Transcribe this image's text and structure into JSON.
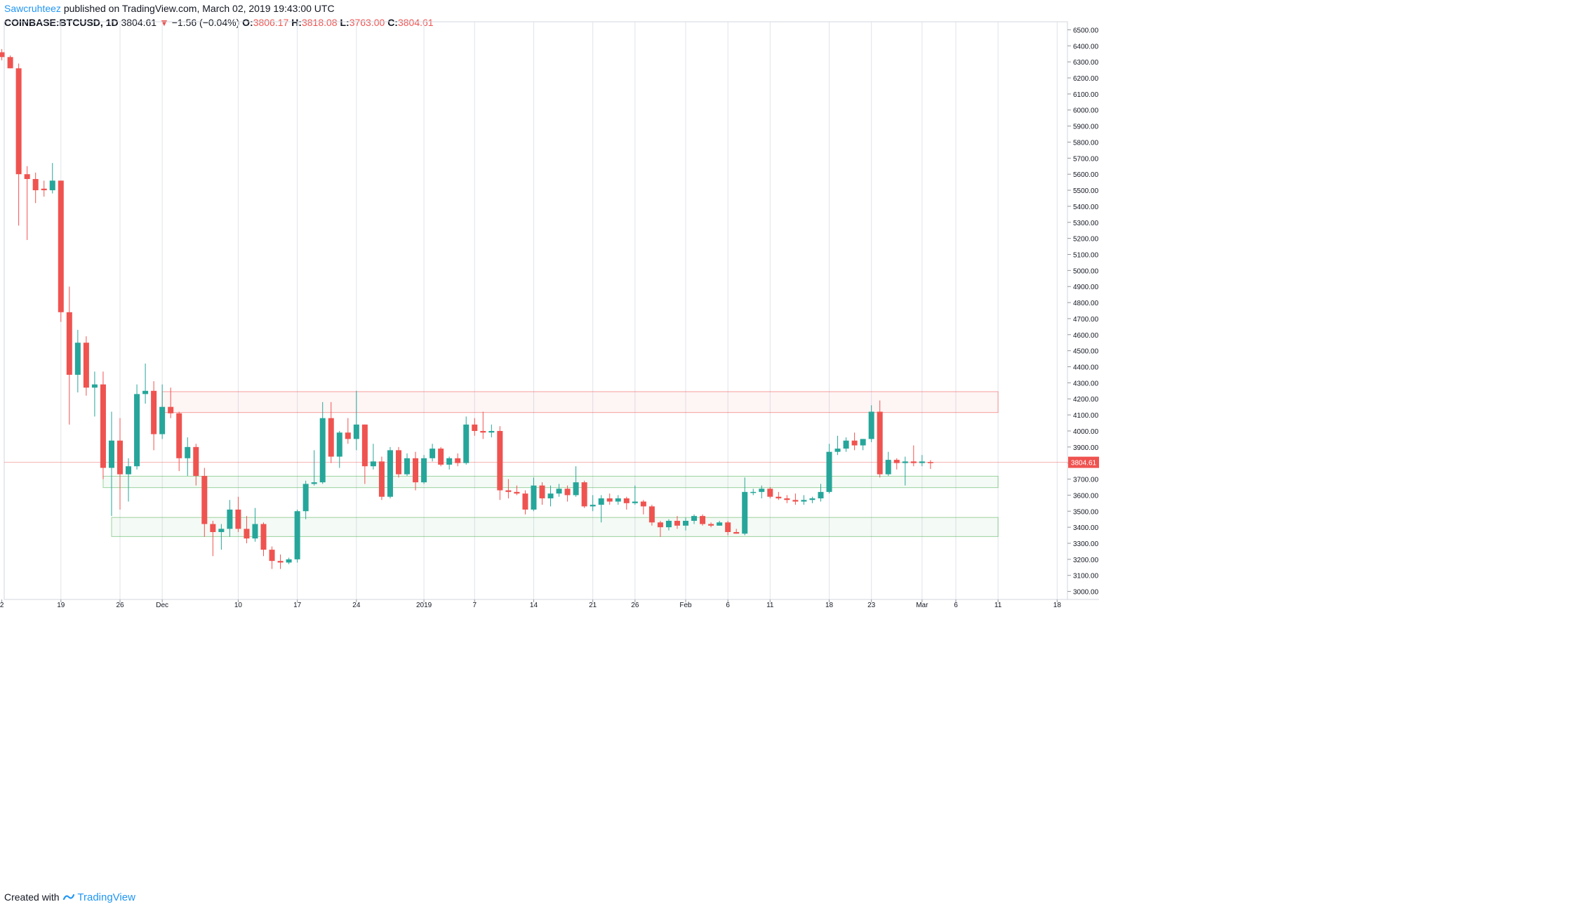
{
  "header": {
    "author": "Sawcruhteez",
    "published": "published on TradingView.com, March 02, 2019 19:43:00 UTC",
    "symbol": "COINBASE:BTCUSD, 1D",
    "last": "3804.61",
    "change_arrow": "▼",
    "change": "−1.56 (−0.04%)",
    "o_label": "O:",
    "o_value": "3806.17",
    "h_label": "H:",
    "h_value": "3818.08",
    "l_label": "L:",
    "l_value": "3763.00",
    "c_label": "C:",
    "c_value": "3804.61"
  },
  "footer": {
    "created_with": "Created with",
    "brand": "TradingView"
  },
  "colors": {
    "up": "#26a69a",
    "down": "#ef5350",
    "resistance_zone": "#ef5350",
    "support_zone": "#4caf50",
    "grid": "#e0e3eb"
  },
  "chart_data": {
    "type": "candlestick",
    "interval": "1D",
    "ylim": [
      2950,
      6550
    ],
    "y_ticks": [
      "6500.00",
      "6400.00",
      "6300.00",
      "6200.00",
      "6100.00",
      "6000.00",
      "5900.00",
      "5800.00",
      "5700.00",
      "5600.00",
      "5500.00",
      "5400.00",
      "5300.00",
      "5200.00",
      "5100.00",
      "5000.00",
      "4900.00",
      "4800.00",
      "4700.00",
      "4600.00",
      "4500.00",
      "4400.00",
      "4300.00",
      "4200.00",
      "4100.00",
      "4000.00",
      "3900.00",
      "3800.00",
      "3700.00",
      "3600.00",
      "3500.00",
      "3400.00",
      "3300.00",
      "3200.00",
      "3100.00",
      "3000.00"
    ],
    "x_ticks": [
      {
        "label": "2",
        "day": -14
      },
      {
        "label": "19",
        "day": -7
      },
      {
        "label": "26",
        "day": 0
      },
      {
        "label": "Dec",
        "day": 5
      },
      {
        "label": "10",
        "day": 14
      },
      {
        "label": "17",
        "day": 21
      },
      {
        "label": "24",
        "day": 28
      },
      {
        "label": "2019",
        "day": 36
      },
      {
        "label": "7",
        "day": 42
      },
      {
        "label": "14",
        "day": 49
      },
      {
        "label": "21",
        "day": 56
      },
      {
        "label": "26",
        "day": 61
      },
      {
        "label": "Feb",
        "day": 67
      },
      {
        "label": "6",
        "day": 72
      },
      {
        "label": "11",
        "day": 77
      },
      {
        "label": "18",
        "day": 84
      },
      {
        "label": "23",
        "day": 89
      },
      {
        "label": "Mar",
        "day": 95
      },
      {
        "label": "6",
        "day": 99
      },
      {
        "label": "11",
        "day": 104
      },
      {
        "label": "18",
        "day": 111
      }
    ],
    "last_price": 3804.61,
    "last_price_label": "3804.61",
    "zones": [
      {
        "kind": "resistance",
        "from_day": 6,
        "to_day": 104,
        "low": 4115,
        "high": 4245
      },
      {
        "kind": "support",
        "from_day": -1,
        "to_day": 104,
        "low": 3647,
        "high": 3718
      },
      {
        "kind": "support",
        "from_day": 0,
        "to_day": 104,
        "low": 3342,
        "high": 3461
      }
    ],
    "candles": [
      {
        "day": -14,
        "o": 6360,
        "h": 6380,
        "l": 6310,
        "c": 6330
      },
      {
        "day": -13,
        "o": 6330,
        "h": 6340,
        "l": 6260,
        "c": 6260
      },
      {
        "day": -12,
        "o": 6260,
        "h": 6290,
        "l": 5280,
        "c": 5600
      },
      {
        "day": -11,
        "o": 5600,
        "h": 5650,
        "l": 5190,
        "c": 5570
      },
      {
        "day": -10,
        "o": 5570,
        "h": 5610,
        "l": 5420,
        "c": 5500
      },
      {
        "day": -9,
        "o": 5510,
        "h": 5560,
        "l": 5460,
        "c": 5500
      },
      {
        "day": -8,
        "o": 5500,
        "h": 5670,
        "l": 5480,
        "c": 5560
      },
      {
        "day": -7,
        "o": 5560,
        "h": 5560,
        "l": 4680,
        "c": 4740
      },
      {
        "day": -6,
        "o": 4740,
        "h": 4900,
        "l": 4040,
        "c": 4350
      },
      {
        "day": -5,
        "o": 4350,
        "h": 4630,
        "l": 4240,
        "c": 4550
      },
      {
        "day": -4,
        "o": 4550,
        "h": 4590,
        "l": 4220,
        "c": 4270
      },
      {
        "day": -3,
        "o": 4270,
        "h": 4370,
        "l": 4090,
        "c": 4290
      },
      {
        "day": -2,
        "o": 4290,
        "h": 4370,
        "l": 3700,
        "c": 3770
      },
      {
        "day": -1,
        "o": 3770,
        "h": 4120,
        "l": 3470,
        "c": 3940
      },
      {
        "day": 0,
        "o": 3940,
        "h": 4080,
        "l": 3510,
        "c": 3730
      },
      {
        "day": 1,
        "o": 3730,
        "h": 3830,
        "l": 3560,
        "c": 3780
      },
      {
        "day": 2,
        "o": 3780,
        "h": 4290,
        "l": 3760,
        "c": 4230
      },
      {
        "day": 3,
        "o": 4230,
        "h": 4420,
        "l": 4170,
        "c": 4250
      },
      {
        "day": 4,
        "o": 4250,
        "h": 4310,
        "l": 3880,
        "c": 3980
      },
      {
        "day": 5,
        "o": 3980,
        "h": 4290,
        "l": 3950,
        "c": 4150
      },
      {
        "day": 6,
        "o": 4150,
        "h": 4270,
        "l": 4080,
        "c": 4110
      },
      {
        "day": 7,
        "o": 4110,
        "h": 4120,
        "l": 3750,
        "c": 3830
      },
      {
        "day": 8,
        "o": 3830,
        "h": 3960,
        "l": 3720,
        "c": 3900
      },
      {
        "day": 9,
        "o": 3900,
        "h": 3920,
        "l": 3660,
        "c": 3720
      },
      {
        "day": 10,
        "o": 3720,
        "h": 3770,
        "l": 3340,
        "c": 3420
      },
      {
        "day": 11,
        "o": 3420,
        "h": 3440,
        "l": 3220,
        "c": 3370
      },
      {
        "day": 12,
        "o": 3370,
        "h": 3420,
        "l": 3260,
        "c": 3390
      },
      {
        "day": 13,
        "o": 3390,
        "h": 3570,
        "l": 3340,
        "c": 3510
      },
      {
        "day": 14,
        "o": 3510,
        "h": 3590,
        "l": 3370,
        "c": 3390
      },
      {
        "day": 15,
        "o": 3390,
        "h": 3470,
        "l": 3300,
        "c": 3330
      },
      {
        "day": 16,
        "o": 3330,
        "h": 3520,
        "l": 3310,
        "c": 3420
      },
      {
        "day": 17,
        "o": 3420,
        "h": 3430,
        "l": 3220,
        "c": 3260
      },
      {
        "day": 18,
        "o": 3260,
        "h": 3280,
        "l": 3140,
        "c": 3190
      },
      {
        "day": 19,
        "o": 3190,
        "h": 3230,
        "l": 3140,
        "c": 3180
      },
      {
        "day": 20,
        "o": 3180,
        "h": 3210,
        "l": 3170,
        "c": 3200
      },
      {
        "day": 21,
        "o": 3200,
        "h": 3510,
        "l": 3180,
        "c": 3500
      },
      {
        "day": 22,
        "o": 3500,
        "h": 3690,
        "l": 3450,
        "c": 3670
      },
      {
        "day": 23,
        "o": 3670,
        "h": 3880,
        "l": 3660,
        "c": 3680
      },
      {
        "day": 24,
        "o": 3680,
        "h": 4180,
        "l": 3670,
        "c": 4080
      },
      {
        "day": 25,
        "o": 4080,
        "h": 4180,
        "l": 3800,
        "c": 3840
      },
      {
        "day": 26,
        "o": 3840,
        "h": 4000,
        "l": 3770,
        "c": 3990
      },
      {
        "day": 27,
        "o": 3990,
        "h": 4080,
        "l": 3920,
        "c": 3950
      },
      {
        "day": 28,
        "o": 3950,
        "h": 4250,
        "l": 3880,
        "c": 4040
      },
      {
        "day": 29,
        "o": 4040,
        "h": 4040,
        "l": 3670,
        "c": 3780
      },
      {
        "day": 30,
        "o": 3780,
        "h": 3920,
        "l": 3760,
        "c": 3810
      },
      {
        "day": 31,
        "o": 3810,
        "h": 3840,
        "l": 3570,
        "c": 3590
      },
      {
        "day": 32,
        "o": 3590,
        "h": 3900,
        "l": 3580,
        "c": 3880
      },
      {
        "day": 33,
        "o": 3880,
        "h": 3900,
        "l": 3710,
        "c": 3730
      },
      {
        "day": 34,
        "o": 3730,
        "h": 3860,
        "l": 3720,
        "c": 3830
      },
      {
        "day": 35,
        "o": 3830,
        "h": 3870,
        "l": 3630,
        "c": 3680
      },
      {
        "day": 36,
        "o": 3680,
        "h": 3850,
        "l": 3670,
        "c": 3830
      },
      {
        "day": 37,
        "o": 3830,
        "h": 3920,
        "l": 3810,
        "c": 3890
      },
      {
        "day": 38,
        "o": 3890,
        "h": 3900,
        "l": 3780,
        "c": 3790
      },
      {
        "day": 39,
        "o": 3790,
        "h": 3840,
        "l": 3760,
        "c": 3830
      },
      {
        "day": 40,
        "o": 3830,
        "h": 3860,
        "l": 3780,
        "c": 3800
      },
      {
        "day": 41,
        "o": 3800,
        "h": 4090,
        "l": 3790,
        "c": 4040
      },
      {
        "day": 42,
        "o": 4040,
        "h": 4080,
        "l": 3970,
        "c": 4000
      },
      {
        "day": 43,
        "o": 4000,
        "h": 4120,
        "l": 3950,
        "c": 3990
      },
      {
        "day": 44,
        "o": 3990,
        "h": 4040,
        "l": 3960,
        "c": 4000
      },
      {
        "day": 45,
        "o": 4000,
        "h": 4030,
        "l": 3570,
        "c": 3630
      },
      {
        "day": 46,
        "o": 3630,
        "h": 3700,
        "l": 3580,
        "c": 3620
      },
      {
        "day": 47,
        "o": 3620,
        "h": 3660,
        "l": 3600,
        "c": 3610
      },
      {
        "day": 48,
        "o": 3610,
        "h": 3630,
        "l": 3480,
        "c": 3510
      },
      {
        "day": 49,
        "o": 3510,
        "h": 3710,
        "l": 3500,
        "c": 3660
      },
      {
        "day": 50,
        "o": 3660,
        "h": 3680,
        "l": 3540,
        "c": 3580
      },
      {
        "day": 51,
        "o": 3580,
        "h": 3660,
        "l": 3530,
        "c": 3610
      },
      {
        "day": 52,
        "o": 3610,
        "h": 3670,
        "l": 3590,
        "c": 3640
      },
      {
        "day": 53,
        "o": 3640,
        "h": 3660,
        "l": 3560,
        "c": 3600
      },
      {
        "day": 54,
        "o": 3600,
        "h": 3780,
        "l": 3590,
        "c": 3680
      },
      {
        "day": 55,
        "o": 3680,
        "h": 3690,
        "l": 3520,
        "c": 3530
      },
      {
        "day": 56,
        "o": 3530,
        "h": 3600,
        "l": 3500,
        "c": 3540
      },
      {
        "day": 57,
        "o": 3540,
        "h": 3600,
        "l": 3430,
        "c": 3580
      },
      {
        "day": 58,
        "o": 3580,
        "h": 3610,
        "l": 3540,
        "c": 3560
      },
      {
        "day": 59,
        "o": 3560,
        "h": 3600,
        "l": 3540,
        "c": 3580
      },
      {
        "day": 60,
        "o": 3580,
        "h": 3590,
        "l": 3510,
        "c": 3550
      },
      {
        "day": 61,
        "o": 3550,
        "h": 3660,
        "l": 3540,
        "c": 3560
      },
      {
        "day": 62,
        "o": 3560,
        "h": 3570,
        "l": 3480,
        "c": 3530
      },
      {
        "day": 63,
        "o": 3530,
        "h": 3540,
        "l": 3410,
        "c": 3430
      },
      {
        "day": 64,
        "o": 3430,
        "h": 3440,
        "l": 3340,
        "c": 3400
      },
      {
        "day": 65,
        "o": 3400,
        "h": 3450,
        "l": 3380,
        "c": 3440
      },
      {
        "day": 66,
        "o": 3440,
        "h": 3470,
        "l": 3390,
        "c": 3410
      },
      {
        "day": 67,
        "o": 3410,
        "h": 3460,
        "l": 3380,
        "c": 3440
      },
      {
        "day": 68,
        "o": 3440,
        "h": 3480,
        "l": 3420,
        "c": 3470
      },
      {
        "day": 69,
        "o": 3470,
        "h": 3480,
        "l": 3410,
        "c": 3420
      },
      {
        "day": 70,
        "o": 3420,
        "h": 3430,
        "l": 3400,
        "c": 3410
      },
      {
        "day": 71,
        "o": 3410,
        "h": 3440,
        "l": 3410,
        "c": 3430
      },
      {
        "day": 72,
        "o": 3430,
        "h": 3440,
        "l": 3350,
        "c": 3370
      },
      {
        "day": 73,
        "o": 3370,
        "h": 3390,
        "l": 3360,
        "c": 3360
      },
      {
        "day": 74,
        "o": 3360,
        "h": 3710,
        "l": 3350,
        "c": 3620
      },
      {
        "day": 75,
        "o": 3620,
        "h": 3640,
        "l": 3600,
        "c": 3620
      },
      {
        "day": 76,
        "o": 3620,
        "h": 3660,
        "l": 3580,
        "c": 3640
      },
      {
        "day": 77,
        "o": 3640,
        "h": 3650,
        "l": 3580,
        "c": 3590
      },
      {
        "day": 78,
        "o": 3590,
        "h": 3620,
        "l": 3570,
        "c": 3580
      },
      {
        "day": 79,
        "o": 3580,
        "h": 3600,
        "l": 3550,
        "c": 3570
      },
      {
        "day": 80,
        "o": 3570,
        "h": 3610,
        "l": 3540,
        "c": 3560
      },
      {
        "day": 81,
        "o": 3560,
        "h": 3600,
        "l": 3540,
        "c": 3570
      },
      {
        "day": 82,
        "o": 3570,
        "h": 3590,
        "l": 3550,
        "c": 3580
      },
      {
        "day": 83,
        "o": 3580,
        "h": 3670,
        "l": 3560,
        "c": 3620
      },
      {
        "day": 84,
        "o": 3620,
        "h": 3920,
        "l": 3610,
        "c": 3870
      },
      {
        "day": 85,
        "o": 3870,
        "h": 3970,
        "l": 3850,
        "c": 3890
      },
      {
        "day": 86,
        "o": 3890,
        "h": 3960,
        "l": 3870,
        "c": 3940
      },
      {
        "day": 87,
        "o": 3940,
        "h": 3990,
        "l": 3880,
        "c": 3910
      },
      {
        "day": 88,
        "o": 3910,
        "h": 3950,
        "l": 3880,
        "c": 3950
      },
      {
        "day": 89,
        "o": 3950,
        "h": 4160,
        "l": 3930,
        "c": 4120
      },
      {
        "day": 90,
        "o": 4120,
        "h": 4190,
        "l": 3710,
        "c": 3730
      },
      {
        "day": 91,
        "o": 3730,
        "h": 3870,
        "l": 3720,
        "c": 3820
      },
      {
        "day": 92,
        "o": 3820,
        "h": 3830,
        "l": 3760,
        "c": 3800
      },
      {
        "day": 93,
        "o": 3800,
        "h": 3840,
        "l": 3660,
        "c": 3810
      },
      {
        "day": 94,
        "o": 3810,
        "h": 3910,
        "l": 3780,
        "c": 3800
      },
      {
        "day": 95,
        "o": 3800,
        "h": 3850,
        "l": 3780,
        "c": 3810
      },
      {
        "day": 96,
        "o": 3806.17,
        "h": 3818.08,
        "l": 3763,
        "c": 3804.61
      }
    ]
  }
}
